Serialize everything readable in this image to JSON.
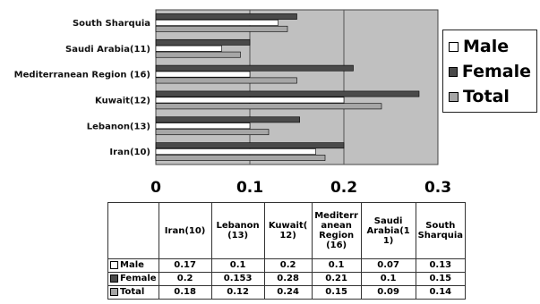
{
  "chart_data": {
    "type": "bar",
    "orientation": "horizontal",
    "categories": [
      "Iran(10)",
      "Lebanon(13)",
      "Kuwait(12)",
      "Mediterranean Region (16)",
      "Saudi Arabia(11)",
      "South Sharquia"
    ],
    "series": [
      {
        "name": "Male",
        "color": "#ffffff",
        "values": [
          0.17,
          0.1,
          0.2,
          0.1,
          0.07,
          0.13
        ]
      },
      {
        "name": "Female",
        "color": "#4a4a4a",
        "values": [
          0.2,
          0.153,
          0.28,
          0.21,
          0.1,
          0.15
        ]
      },
      {
        "name": "Total",
        "color": "#a6a6a6",
        "values": [
          0.18,
          0.12,
          0.24,
          0.15,
          0.09,
          0.14
        ]
      }
    ],
    "xlim": [
      0,
      0.3
    ],
    "x_ticks": [
      "0",
      "0.1",
      "0.2",
      "0.3"
    ],
    "plot_background": "#c0c0c0",
    "grid": "vertical",
    "legend_position": "right",
    "table": {
      "column_headers": [
        "Iran(10)",
        "Lebanon (13)",
        "Kuwait( 12)",
        "Mediterr anean Region (16)",
        "Saudi Arabia(1 1)",
        "South Sharquia"
      ],
      "rows": [
        {
          "label": "Male",
          "color": "#ffffff",
          "values": [
            "0.17",
            "0.1",
            "0.2",
            "0.1",
            "0.07",
            "0.13"
          ]
        },
        {
          "label": "Female",
          "color": "#4a4a4a",
          "values": [
            "0.2",
            "0.153",
            "0.28",
            "0.21",
            "0.1",
            "0.15"
          ]
        },
        {
          "label": "Total",
          "color": "#a6a6a6",
          "values": [
            "0.18",
            "0.12",
            "0.24",
            "0.15",
            "0.09",
            "0.14"
          ]
        }
      ]
    }
  }
}
